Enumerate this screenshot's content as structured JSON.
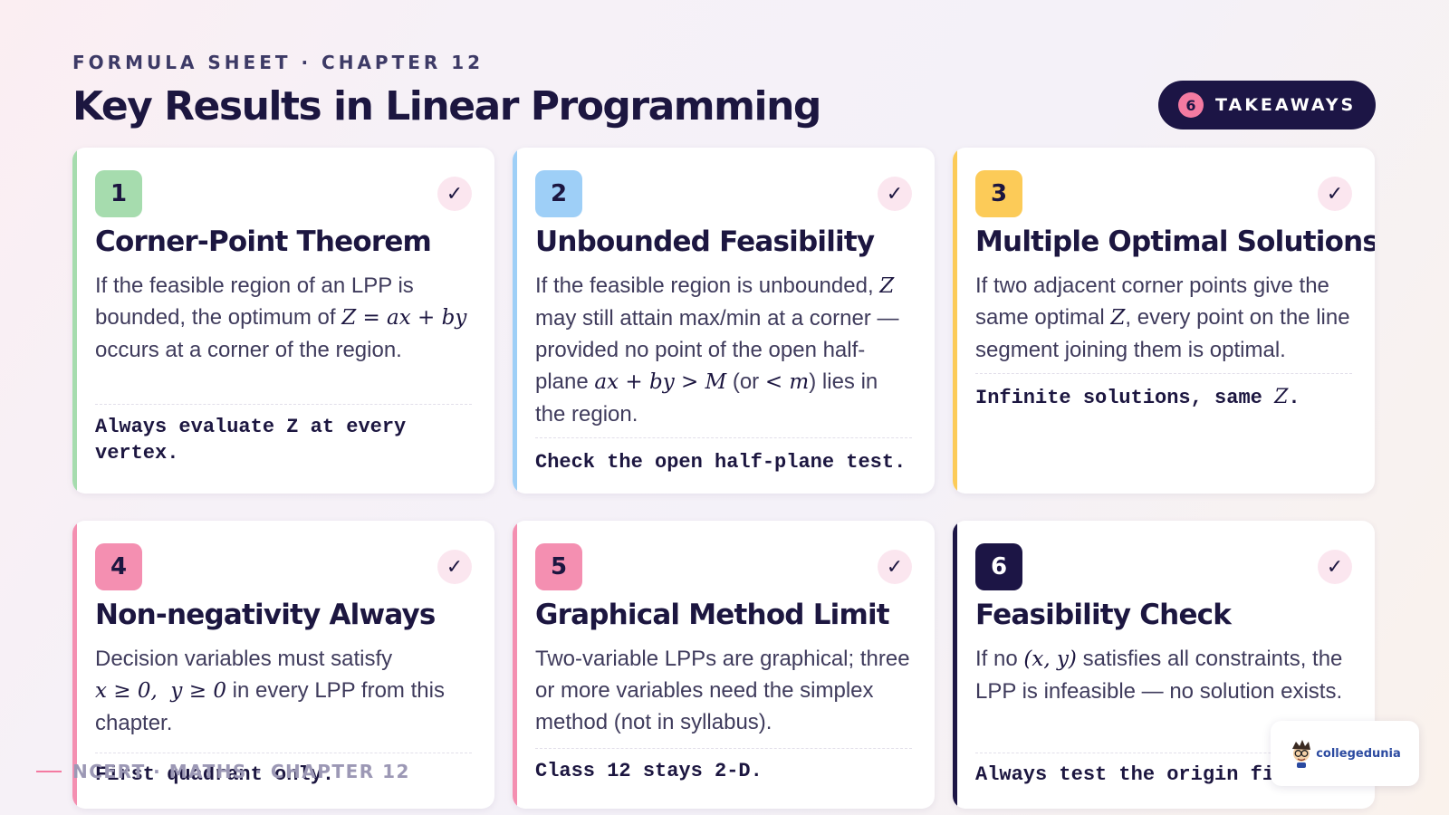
{
  "header": {
    "eyebrow": "FORMULA SHEET · CHAPTER 12",
    "title": "Key Results in Linear Programming"
  },
  "badge": {
    "count": "6",
    "label": "TAKEAWAYS"
  },
  "colors": {
    "green": "#a6dcae",
    "blue": "#9ecff7",
    "yellow": "#fccb58",
    "pink": "#f48fb1",
    "navy": "#1c1545",
    "accent_pink": "#f47aa1"
  },
  "cards": [
    {
      "num": "1",
      "title": "Corner-Point Theorem",
      "body_a": "If the feasible region of an LPP is bounded, the optimum of",
      "math_a": "Z = ax + by",
      "body_b": "occurs at a corner of the region.",
      "note": "Always evaluate Z at every vertex.",
      "check": "✓"
    },
    {
      "num": "2",
      "title": "Unbounded Feasibility",
      "body_a": "If the feasible region is unbounded,",
      "math_a": "Z",
      "body_b": "may still attain max/min at a corner — provided no point of the open half-plane",
      "math_b": "ax + by > M",
      "body_c": "(or",
      "math_c": "< m",
      "body_d": ") lies in the region.",
      "note": "Check the open half-plane test.",
      "check": "✓"
    },
    {
      "num": "3",
      "title": "Multiple Optimal Solutions",
      "body_a": "If two adjacent corner points give the same optimal",
      "math_a": "Z",
      "body_b": ", every point on the line segment joining them is optimal.",
      "note_a": "Infinite solutions, same ",
      "note_math": "Z",
      "note_b": ".",
      "check": "✓"
    },
    {
      "num": "4",
      "title": "Non-negativity Always",
      "body_a": "Decision variables must satisfy",
      "math_a": "x ≥ 0,  y ≥ 0",
      "body_b": "in every LPP from this chapter.",
      "note": "First quadrant only.",
      "check": "✓"
    },
    {
      "num": "5",
      "title": "Graphical Method Limit",
      "body_a": "Two-variable LPPs are graphical; three or more variables need the simplex method (not in syllabus).",
      "note": "Class 12 stays 2-D.",
      "check": "✓"
    },
    {
      "num": "6",
      "title": "Feasibility Check",
      "body_a": "If no",
      "math_a": "(x, y)",
      "body_b": "satisfies all constraints, the LPP is infeasible — no solution exists.",
      "note": "Always test the origin fi",
      "check": "✓"
    }
  ],
  "footer": {
    "text": "NCERT · MATHS · CHAPTER 12"
  },
  "logo": {
    "brand": "collegedunia"
  }
}
